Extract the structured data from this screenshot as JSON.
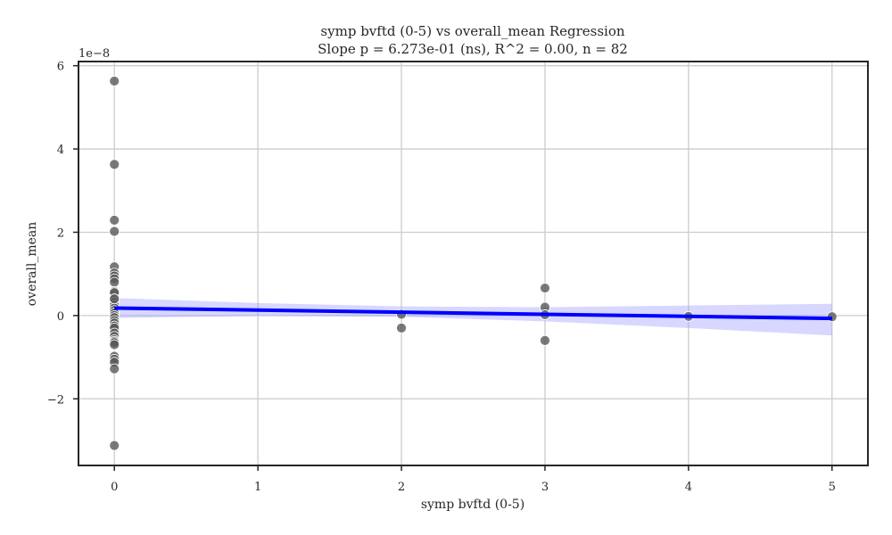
{
  "chart_data": {
    "type": "scatter",
    "title": "symp bvftd (0-5) vs overall_mean Regression",
    "subtitle": "Slope p = 6.273e-01 (ns), R^2 = 0.00, n = 82",
    "xlabel": "symp bvftd (0-5)",
    "ylabel": "overall_mean",
    "y_offset_label": "1e−8",
    "xlim": [
      -0.25,
      5.25
    ],
    "ylim": [
      -3.6,
      6.1
    ],
    "x_ticks": [
      0,
      1,
      2,
      3,
      4,
      5
    ],
    "x_tick_labels": [
      "0",
      "1",
      "2",
      "3",
      "4",
      "5"
    ],
    "y_ticks": [
      -2,
      0,
      2,
      4,
      6
    ],
    "y_tick_labels": [
      "−2",
      "0",
      "2",
      "4",
      "6"
    ],
    "grid": true,
    "colors": {
      "points": "#595959",
      "regression_line": "#0000ff",
      "confidence_band": "#9a9aff",
      "grid": "#cccccc",
      "frame": "#262626"
    },
    "points": {
      "x": [
        0,
        0,
        0,
        0,
        0,
        0,
        0,
        0,
        0,
        0,
        0,
        0,
        0,
        0,
        0,
        0,
        0,
        0,
        0,
        0,
        0,
        0,
        0,
        0,
        0,
        0,
        0,
        0,
        0,
        0,
        0,
        0,
        0,
        0,
        0,
        2,
        2,
        3,
        3,
        3,
        3,
        4,
        5
      ],
      "y": [
        5.63,
        3.63,
        2.29,
        2.02,
        1.17,
        1.02,
        0.95,
        0.88,
        0.8,
        0.58,
        0.55,
        0.4,
        0.32,
        0.25,
        0.18,
        0.12,
        0.06,
        0.0,
        -0.05,
        -0.12,
        -0.18,
        -0.25,
        -0.3,
        -0.42,
        -0.5,
        -0.58,
        -0.62,
        -0.65,
        -0.7,
        -0.98,
        -1.05,
        -1.12,
        -1.28,
        -3.12,
        0.4,
        0.03,
        -0.3,
        0.66,
        0.2,
        0.02,
        -0.6,
        -0.02,
        -0.03
      ]
    },
    "regression": {
      "x": [
        0,
        5
      ],
      "y": [
        0.18,
        -0.07
      ]
    },
    "confidence_band": {
      "x": [
        0,
        1,
        2,
        3,
        4,
        5
      ],
      "upper": [
        0.42,
        0.3,
        0.22,
        0.2,
        0.24,
        0.28
      ],
      "lower": [
        -0.06,
        -0.01,
        -0.03,
        -0.14,
        -0.3,
        -0.48
      ]
    }
  }
}
